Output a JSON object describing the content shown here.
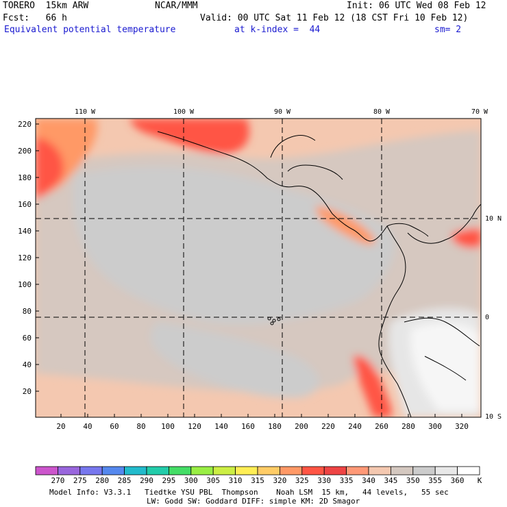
{
  "header": {
    "line1_left": "TORERO  15km ARW",
    "line1_mid": "NCAR/MMM",
    "line1_right": "Init: 06 UTC Wed 08 Feb 12",
    "line2_left": "Fcst:   66 h",
    "line2_right": "Valid: 00 UTC Sat 11 Feb 12 (18 CST Fri 10 Feb 12)",
    "line3_field": "Equivalent potential temperature",
    "line3_level": "at k-index =  44",
    "line3_sm": "sm= 2"
  },
  "map": {
    "lon_labels": [
      "110 W",
      "100 W",
      "90 W",
      "80 W",
      "70 W"
    ],
    "lat_labels": [
      "10 N",
      "0",
      "10 S"
    ],
    "y_ticks": [
      "220",
      "200",
      "180",
      "160",
      "140",
      "120",
      "100",
      "80",
      "60",
      "40",
      "20"
    ],
    "x_ticks": [
      "20",
      "40",
      "60",
      "80",
      "100",
      "120",
      "140",
      "160",
      "180",
      "200",
      "220",
      "240",
      "260",
      "280",
      "300",
      "320"
    ]
  },
  "colorbar": {
    "labels": [
      "270",
      "275",
      "280",
      "285",
      "290",
      "295",
      "300",
      "305",
      "310",
      "315",
      "320",
      "325",
      "330",
      "335",
      "340",
      "345",
      "350",
      "355",
      "360"
    ],
    "unit": "K",
    "colors": [
      "#cc55cc",
      "#9966dd",
      "#7777ee",
      "#5588ee",
      "#22bbcc",
      "#22ccaa",
      "#44dd66",
      "#99ee44",
      "#ccee44",
      "#ffee55",
      "#ffcc66",
      "#ff9966",
      "#ff5544",
      "#ee4444",
      "#ff9977",
      "#f4c8b0",
      "#d4c8c0",
      "#cccccc",
      "#e8e8e8",
      "#ffffff"
    ]
  },
  "footer": {
    "line1": "Model Info: V3.3.1   Tiedtke YSU PBL  Thompson    Noah LSM  15 km,   44 levels,   55 sec",
    "line2": "LW: Godd SW: Goddard DIFF: simple KM: 2D Smagor"
  }
}
